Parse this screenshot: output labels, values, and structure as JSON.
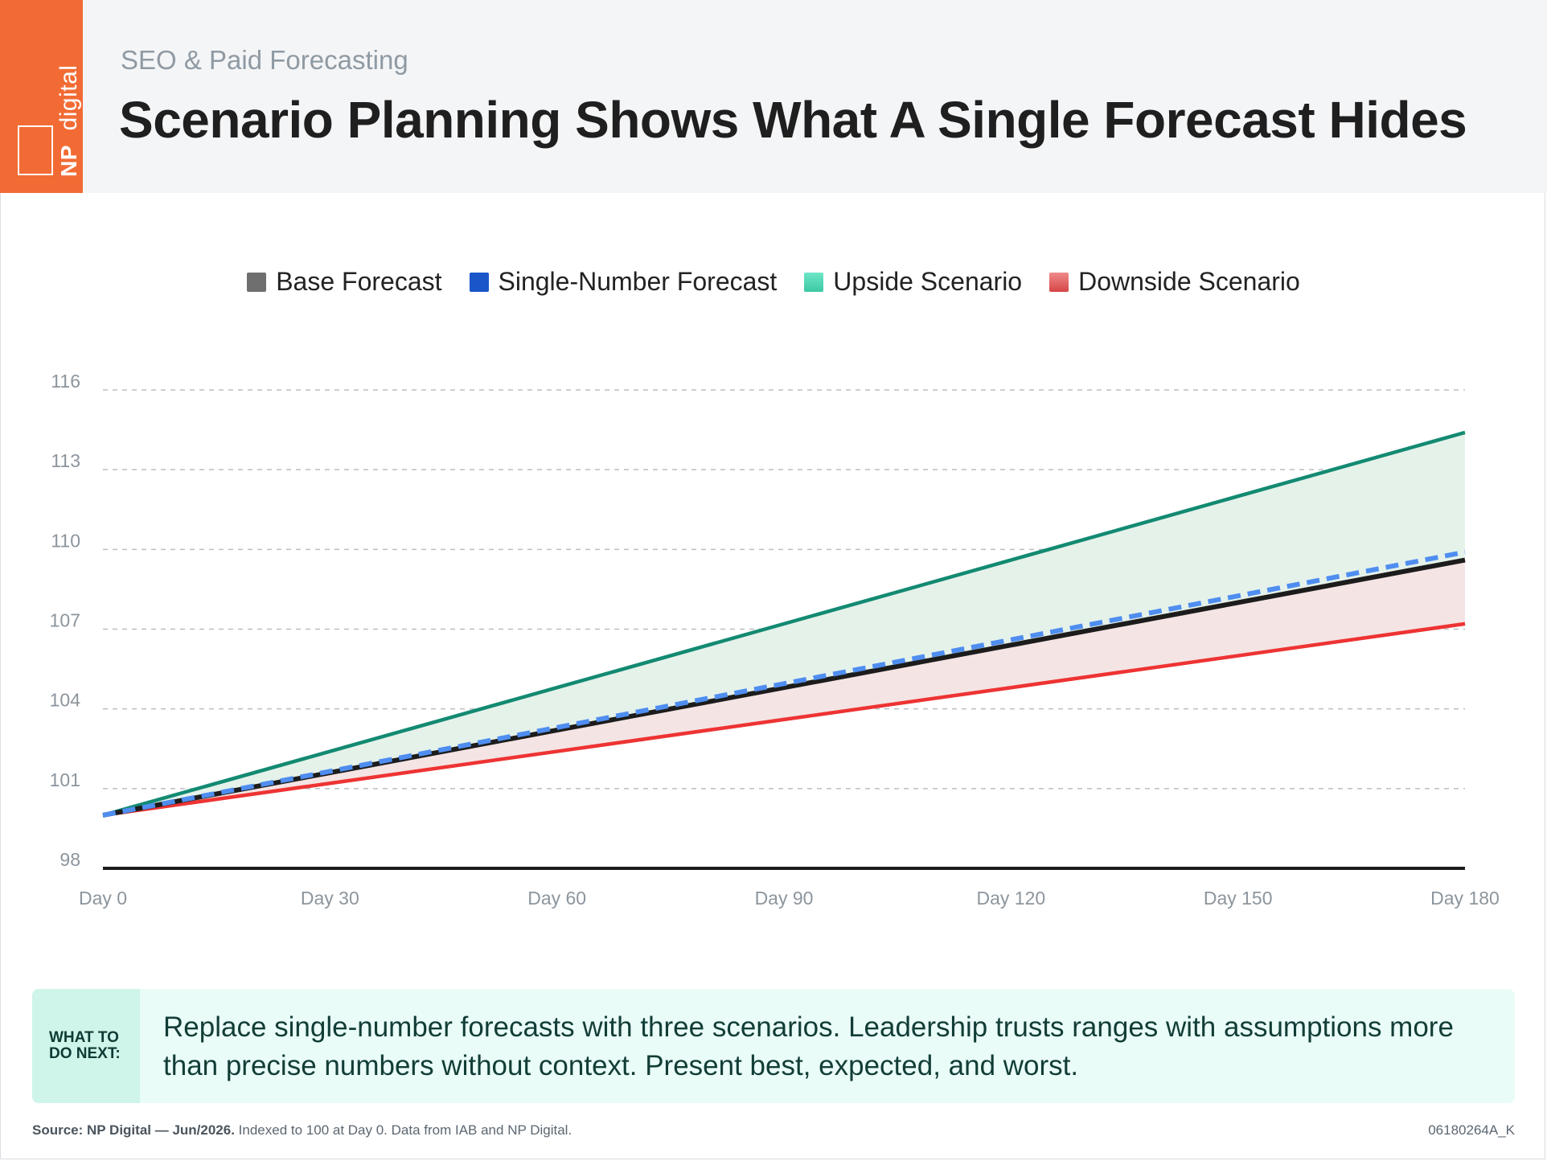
{
  "header": {
    "kicker": "SEO & Paid Forecasting",
    "title": "Scenario Planning Shows What A Single Forecast Hides",
    "logo_np": "NP",
    "logo_word": "digital"
  },
  "colors": {
    "brand": "#f26b34",
    "base": "#1c1c1c",
    "single": "#4f8ef0",
    "upside": "#138a72",
    "downside": "#ee3333",
    "upside_fill": "#e5f2ea",
    "downside_fill": "#f5e4e4"
  },
  "legend": [
    {
      "label": "Base Forecast",
      "color": "#6f6f6f"
    },
    {
      "label": "Single-Number Forecast",
      "color": "#1a56c8"
    },
    {
      "label": "Upside Scenario",
      "color": "#4fd6b4"
    },
    {
      "label": "Downside Scenario",
      "color": "#de5555"
    }
  ],
  "chart_data": {
    "type": "line",
    "x": [
      0,
      30,
      60,
      90,
      120,
      150,
      180
    ],
    "x_tick_labels": [
      "Day 0",
      "Day 30",
      "Day 60",
      "Day 90",
      "Day 120",
      "Day 150",
      "Day 180"
    ],
    "y_ticks": [
      98,
      101,
      104,
      107,
      110,
      113,
      116
    ],
    "ylim": [
      98,
      116
    ],
    "grid": true,
    "legend_position": "top-center",
    "series": [
      {
        "name": "Upside Scenario",
        "values": [
          100,
          102.4,
          104.8,
          107.2,
          109.6,
          112.0,
          114.4
        ]
      },
      {
        "name": "Base Forecast",
        "values": [
          100,
          101.6,
          103.2,
          104.8,
          106.4,
          108.0,
          109.6
        ]
      },
      {
        "name": "Single-Number Forecast",
        "values": [
          100,
          101.65,
          103.3,
          104.95,
          106.6,
          108.25,
          109.9
        ]
      },
      {
        "name": "Downside Scenario",
        "values": [
          100,
          101.2,
          102.4,
          103.6,
          104.8,
          106.0,
          107.2
        ]
      }
    ]
  },
  "callout": {
    "tag": "WHAT TO DO NEXT:",
    "text": "Replace single-number forecasts with three scenarios. Leadership trusts ranges with assumptions more than precise numbers without context. Present best, expected, and worst."
  },
  "footer": {
    "source_bold": "Source: NP Digital — Jun/2026.",
    "source_rest": " Indexed to 100 at Day 0. Data from IAB and NP Digital.",
    "code": "06180264A_K"
  }
}
